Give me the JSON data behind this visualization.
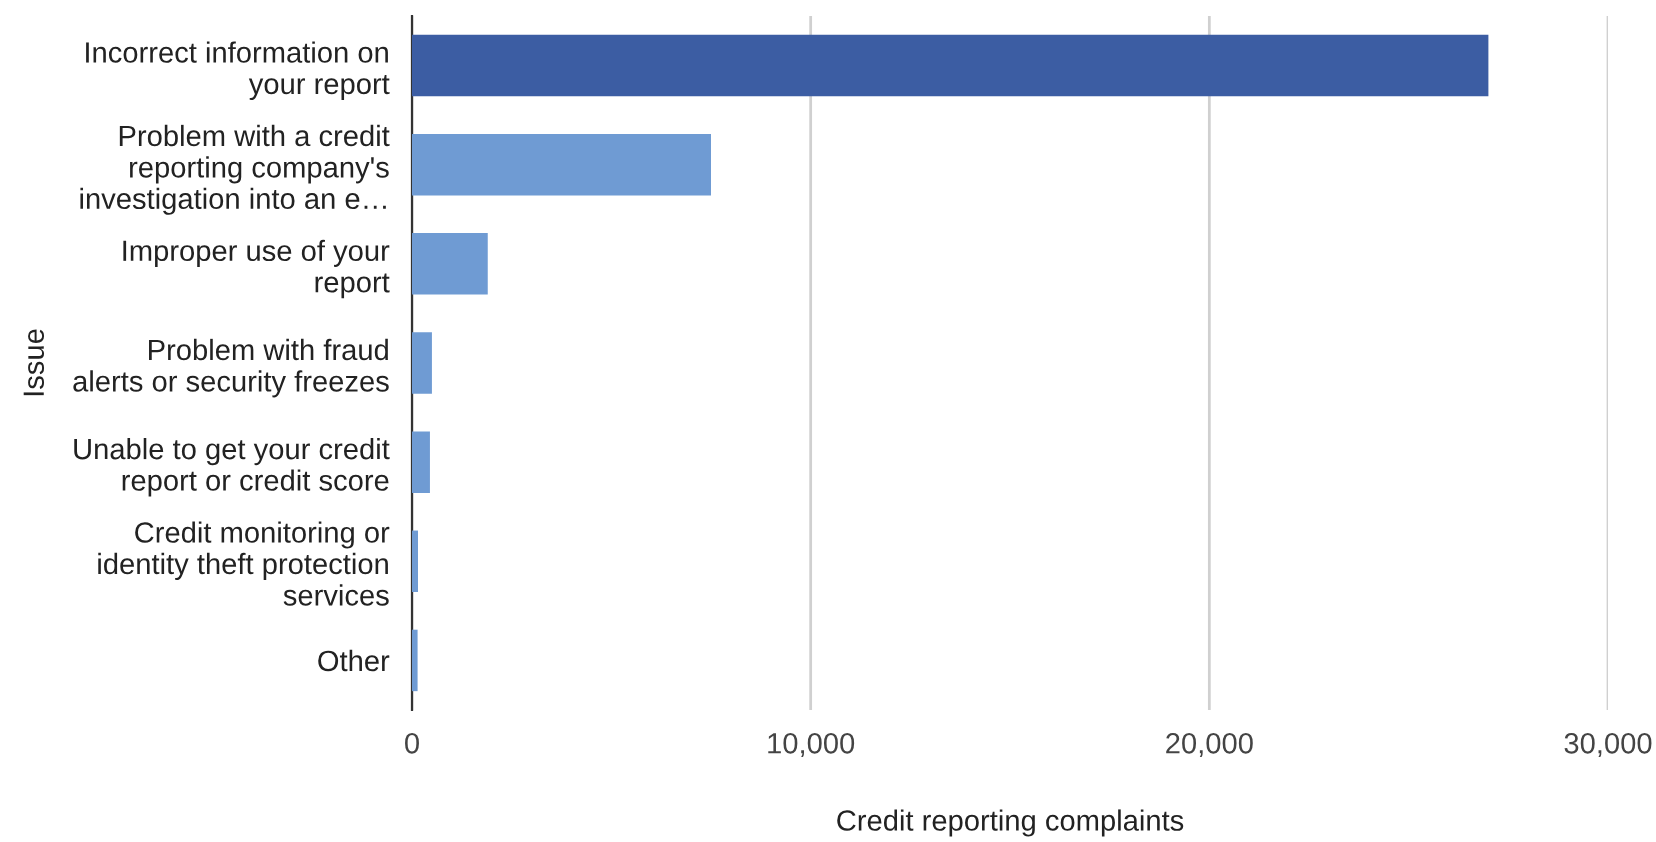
{
  "chart_data": {
    "type": "bar",
    "orientation": "horizontal",
    "categories": [
      "Incorrect information on\nyour report",
      "Problem with a credit\nreporting company's\ninvestigation into an e…",
      "Improper use of your\nreport",
      "Problem with fraud\nalerts or security freezes",
      "Unable to get your credit\nreport or credit score",
      "Credit monitoring or\nidentity theft protection\nservices",
      "Other"
    ],
    "values": [
      27000,
      7500,
      1900,
      500,
      450,
      150,
      140
    ],
    "colors": [
      "#3c5da3",
      "#6f9bd3",
      "#6f9bd3",
      "#6f9bd3",
      "#6f9bd3",
      "#6f9bd3",
      "#6f9bd3"
    ],
    "xlabel": "Credit reporting complaints",
    "ylabel": "Issue",
    "xlim": [
      0,
      30000
    ],
    "xticks": [
      0,
      {
        "value": 10000,
        "label": "10,000"
      },
      {
        "value": 20000,
        "label": "20,000"
      },
      {
        "value": 30000,
        "label": "30,000"
      }
    ],
    "grid": "x",
    "legend": false
  }
}
